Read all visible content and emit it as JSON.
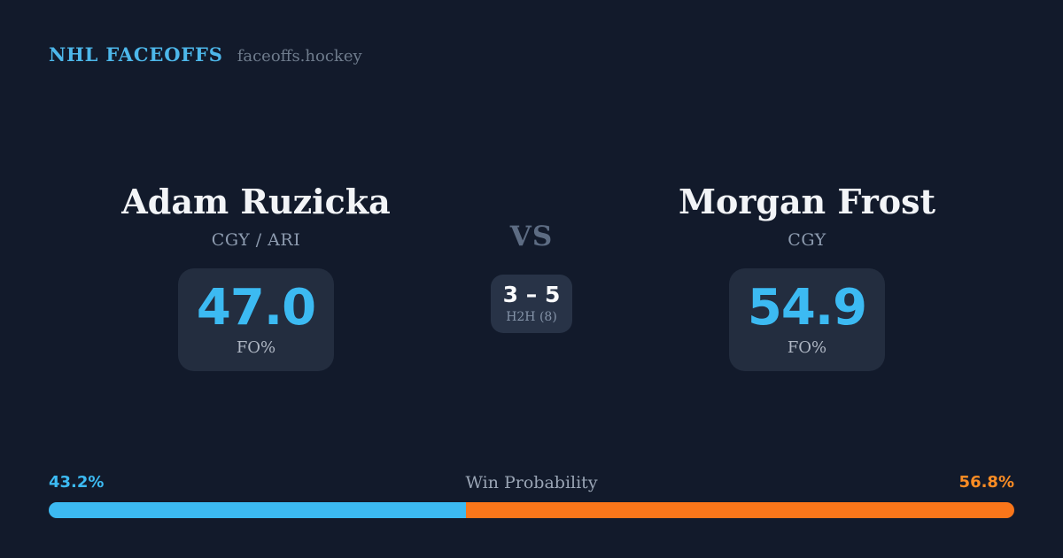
{
  "header": {
    "brand": "NHL FACEOFFS",
    "domain": "faceoffs.hockey"
  },
  "players": [
    {
      "name": "Adam Ruzicka",
      "team": "CGY / ARI",
      "fo_pct": "47.0",
      "fo_label": "FO%"
    },
    {
      "name": "Morgan Frost",
      "team": "CGY",
      "fo_pct": "54.9",
      "fo_label": "FO%"
    }
  ],
  "center": {
    "vs_label": "VS",
    "h2h_score": "3 – 5",
    "h2h_label": "H2H (8)"
  },
  "win_probability": {
    "title": "Win Probability",
    "left_pct_label": "43.2%",
    "right_pct_label": "56.8%",
    "left_value": 43.2,
    "right_value": 56.8
  },
  "colors": {
    "background": "#121a2b",
    "card": "#232d3f",
    "h2h_card": "#283347",
    "accent_blue": "#3cbaf2",
    "accent_orange": "#f9761a",
    "orange_label": "#fa8c24",
    "brand_blue": "#4db7ea",
    "name_white": "#f2f4f7",
    "score_white": "#fafbfd",
    "muted": "#6e7b8c",
    "team_gray": "#8e9cb0",
    "fo_label_gray": "#aeb6c3",
    "vs_gray": "#5d6c83",
    "winprob_gray": "#9aa5b5",
    "h2h_label_gray": "#8493a8"
  }
}
